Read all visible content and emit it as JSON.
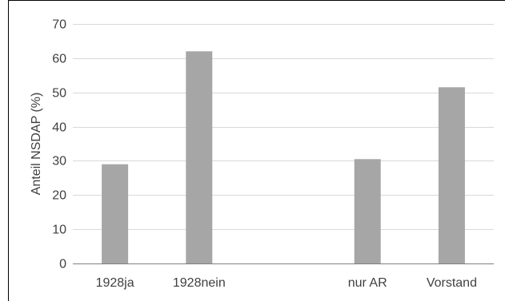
{
  "chart_data": {
    "type": "bar",
    "title": "",
    "xlabel": "",
    "ylabel": "Anteil NSDAP (%)",
    "categories": [
      "1928ja",
      "1928nein",
      "",
      "nur AR",
      "Vorstand"
    ],
    "values": [
      29,
      62,
      null,
      30.5,
      51.5
    ],
    "ylim": [
      0,
      70
    ],
    "yticks": [
      0,
      10,
      20,
      30,
      40,
      50,
      60,
      70
    ],
    "grid": "horizontal",
    "legend": "none",
    "colors": {
      "bar": "#a6a6a6",
      "grid": "#d9d9d9",
      "axis": "#808080",
      "text": "#404040",
      "border": "#000000"
    }
  }
}
